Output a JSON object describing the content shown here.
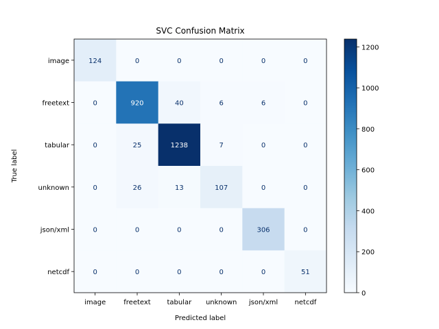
{
  "chart_data": {
    "type": "heatmap",
    "title": "SVC Confusion Matrix",
    "xlabel": "Predicted label",
    "ylabel": "True label",
    "x_categories": [
      "image",
      "freetext",
      "tabular",
      "unknown",
      "json/xml",
      "netcdf"
    ],
    "y_categories": [
      "image",
      "freetext",
      "tabular",
      "unknown",
      "json/xml",
      "netcdf"
    ],
    "values": [
      [
        124,
        0,
        0,
        0,
        0,
        0
      ],
      [
        0,
        920,
        40,
        6,
        6,
        0
      ],
      [
        0,
        25,
        1238,
        7,
        0,
        0
      ],
      [
        0,
        26,
        13,
        107,
        0,
        0
      ],
      [
        0,
        0,
        0,
        0,
        306,
        0
      ],
      [
        0,
        0,
        0,
        0,
        0,
        51
      ]
    ],
    "colormap": "Blues",
    "color_range": [
      0,
      1238
    ],
    "colorbar_ticks": [
      0,
      200,
      400,
      600,
      800,
      1000,
      1200
    ],
    "grid": false
  }
}
